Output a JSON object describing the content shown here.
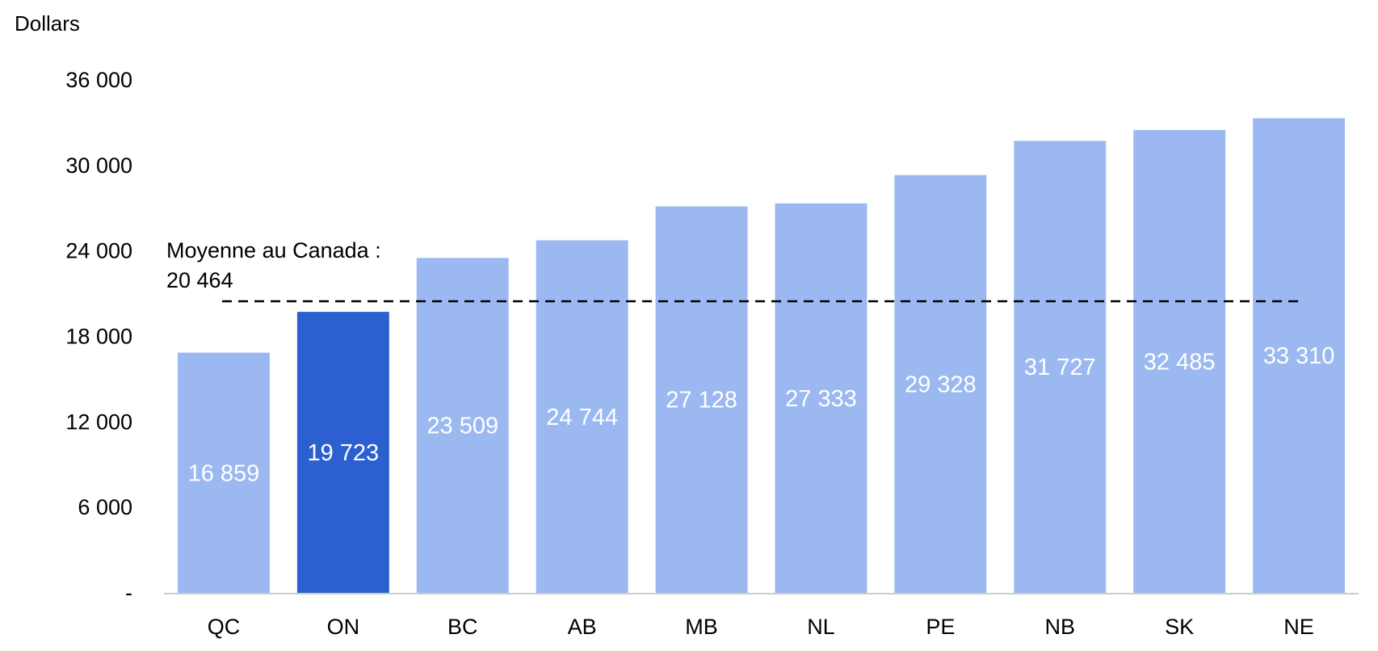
{
  "chart_data": {
    "type": "bar",
    "ylabel": "Dollars",
    "categories": [
      "QC",
      "ON",
      "BC",
      "AB",
      "MB",
      "NL",
      "PE",
      "NB",
      "SK",
      "NE"
    ],
    "values": [
      16859,
      19723,
      23509,
      24744,
      27128,
      27333,
      29328,
      31727,
      32485,
      33310
    ],
    "value_labels": [
      "16 859",
      "19 723",
      "23 509",
      "24 744",
      "27 128",
      "27 333",
      "29 328",
      "31 727",
      "32 485",
      "33 310"
    ],
    "highlight_category": "ON",
    "ylim": [
      0,
      36000
    ],
    "yticks": [
      0,
      6000,
      12000,
      18000,
      24000,
      30000,
      36000
    ],
    "ytick_labels": [
      "-",
      "6 000",
      "12 000",
      "18 000",
      "24 000",
      "30 000",
      "36 000"
    ],
    "reference_line": {
      "value": 20464,
      "label_line1": "Moyenne au Canada :",
      "label_line2": "20 464",
      "style": "dashed"
    },
    "grid": false,
    "legend": "none",
    "colors": {
      "bar": "#9bb9f0",
      "highlight": "#2c60d0",
      "axis": "#cccccc",
      "reference": "#000000",
      "value_label": "#ffffff"
    }
  }
}
